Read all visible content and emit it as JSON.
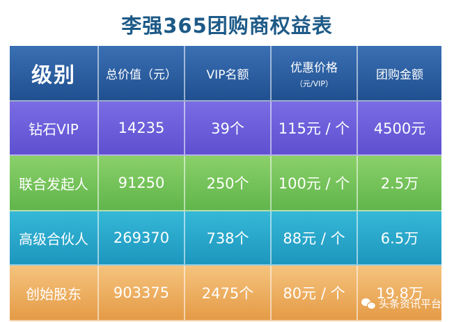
{
  "title": "李强365团购商权益表",
  "headers": {
    "level": "级别",
    "total_value": "总价值（元）",
    "vip_quota": "VIP名额",
    "discount_price": "优惠价格",
    "discount_unit": "（元/VIP）",
    "group_amount": "团购金额"
  },
  "rows": [
    {
      "level": "钻石VIP",
      "total_value": "14235",
      "vip_quota": "39个",
      "discount_price": "115元 / 个",
      "group_amount": "4500元"
    },
    {
      "level": "联合发起人",
      "total_value": "91250",
      "vip_quota": "250个",
      "discount_price": "100元 / 个",
      "group_amount": "2.5万"
    },
    {
      "level": "高级合伙人",
      "total_value": "269370",
      "vip_quota": "738个",
      "discount_price": "88元 / 个",
      "group_amount": "6.5万"
    },
    {
      "level": "创始股东",
      "total_value": "903375",
      "vip_quota": "2475个",
      "discount_price": "80元 / 个",
      "group_amount": "19.8万"
    }
  ],
  "watermark": {
    "icon": "wechat-icon",
    "text": "头条资讯平台"
  }
}
